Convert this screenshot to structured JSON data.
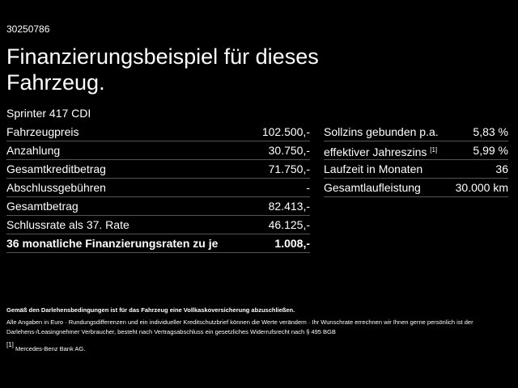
{
  "header": {
    "id": "30250786",
    "title": "Finanzierungsbeispiel für dieses Fahrzeug.",
    "model": "Sprinter 417 CDI"
  },
  "left_table": {
    "rows": [
      {
        "label": "Fahrzeugpreis",
        "value": "102.500,-"
      },
      {
        "label": "Anzahlung",
        "value": "30.750,-"
      },
      {
        "label": "Gesamtkreditbetrag",
        "value": "71.750,-"
      },
      {
        "label": "Abschlussgebühren",
        "value": "-"
      },
      {
        "label": "Gesamtbetrag",
        "value": "82.413,-"
      },
      {
        "label": "Schlussrate als 37. Rate",
        "value": "46.125,-"
      },
      {
        "label": "36 monatliche Finanzierungsraten zu je",
        "value": "1.008,-"
      }
    ]
  },
  "right_table": {
    "rows": [
      {
        "label": "Sollzins gebunden p.a.",
        "value": "5,83 %"
      },
      {
        "label": "effektiver Jahreszins",
        "note": "[1]",
        "value": "5,99 %"
      },
      {
        "label": "Laufzeit in Monaten",
        "value": "36"
      },
      {
        "label": "Gesamtlaufleistung",
        "value": "30.000 km"
      }
    ]
  },
  "footer": {
    "notice": "Gemäß den Darlehensbedingungen ist für das Fahrzeug eine Vollkaskoversicherung abzuschließen.",
    "details": "Alle Angaben in Euro · Rundungsdifferenzen und ein individueller Kreditschutzbrief können die Werte verändern · Ihr Wunschrate errechnen wir Ihnen gerne persönlich ist der Darlehens-/Leasingnehmer Verbraucher, besteht nach Vertragsabschluss ein gesetzliches Widerrufsrecht nach § 495 BGB",
    "footnote_marker": "[1]",
    "footnote": "Mercedes-Benz Bank AG."
  }
}
